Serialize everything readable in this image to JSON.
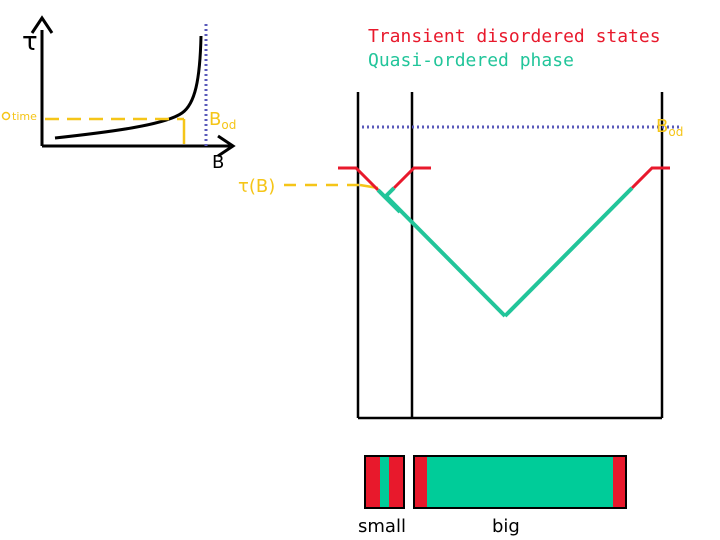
{
  "inset": {
    "y_axis_label": "τ",
    "x_axis_label": "B",
    "time_marker_label": "t",
    "time_marker_text": "time",
    "bod_label": "B",
    "bod_subscript": "od"
  },
  "main": {
    "legend": {
      "line1": "Transient disordered states",
      "line2": "Quasi-ordered phase",
      "line1_color": "#e8192c",
      "line2_color": "#22c59a"
    },
    "tau_label": "τ(B)",
    "bod_label": "B",
    "bod_subscript": "od"
  },
  "bars": {
    "small_label": "small",
    "big_label": "big"
  },
  "colors": {
    "red": "#e8192c",
    "teal": "#22c59a",
    "fill_teal": "#00cc99",
    "yellow": "#f5c518",
    "blue_dotted": "#5a5aba",
    "axis": "#000000"
  }
}
